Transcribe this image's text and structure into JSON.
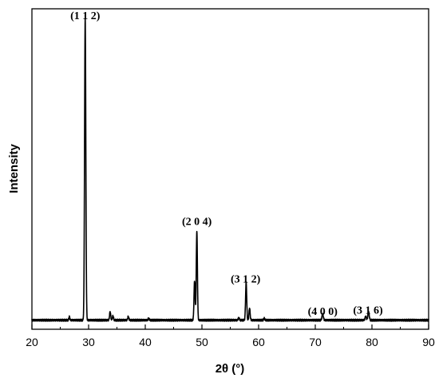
{
  "chart_data": {
    "type": "line",
    "xlabel": "2θ (°)",
    "ylabel": "Intensity",
    "xlim": [
      20,
      90
    ],
    "ylim": [
      0,
      1.06
    ],
    "x_ticks": [
      20,
      30,
      40,
      50,
      60,
      70,
      80,
      90
    ],
    "y_ticks_shown": false,
    "grid": false,
    "baseline": 0.03,
    "peaks": [
      {
        "x": 26.6,
        "h": 0.012,
        "w": 0.08
      },
      {
        "x": 29.4,
        "h": 1.0,
        "w": 0.11
      },
      {
        "x": 33.8,
        "h": 0.028,
        "w": 0.1
      },
      {
        "x": 34.3,
        "h": 0.014,
        "w": 0.1
      },
      {
        "x": 37.0,
        "h": 0.012,
        "w": 0.1
      },
      {
        "x": 40.6,
        "h": 0.006,
        "w": 0.1
      },
      {
        "x": 48.7,
        "h": 0.13,
        "w": 0.1
      },
      {
        "x": 49.1,
        "h": 0.295,
        "w": 0.1
      },
      {
        "x": 56.5,
        "h": 0.008,
        "w": 0.1
      },
      {
        "x": 57.8,
        "h": 0.125,
        "w": 0.1
      },
      {
        "x": 58.4,
        "h": 0.04,
        "w": 0.1
      },
      {
        "x": 61.0,
        "h": 0.006,
        "w": 0.1
      },
      {
        "x": 71.3,
        "h": 0.02,
        "w": 0.12
      },
      {
        "x": 78.9,
        "h": 0.012,
        "w": 0.12
      },
      {
        "x": 79.4,
        "h": 0.028,
        "w": 0.12
      }
    ],
    "annotations": [
      {
        "key": "a112",
        "text": "(1 1 2)",
        "x": 29.4,
        "y": 1.025
      },
      {
        "key": "a204",
        "text": "(2 0 4)",
        "x": 49.1,
        "y": 0.345
      },
      {
        "key": "a312",
        "text": "(3 1 2)",
        "x": 57.7,
        "y": 0.155
      },
      {
        "key": "a400",
        "text": "(4 0 0)",
        "x": 71.3,
        "y": 0.047
      },
      {
        "key": "a316",
        "text": "(3 1 6)",
        "x": 79.3,
        "y": 0.052
      }
    ]
  }
}
